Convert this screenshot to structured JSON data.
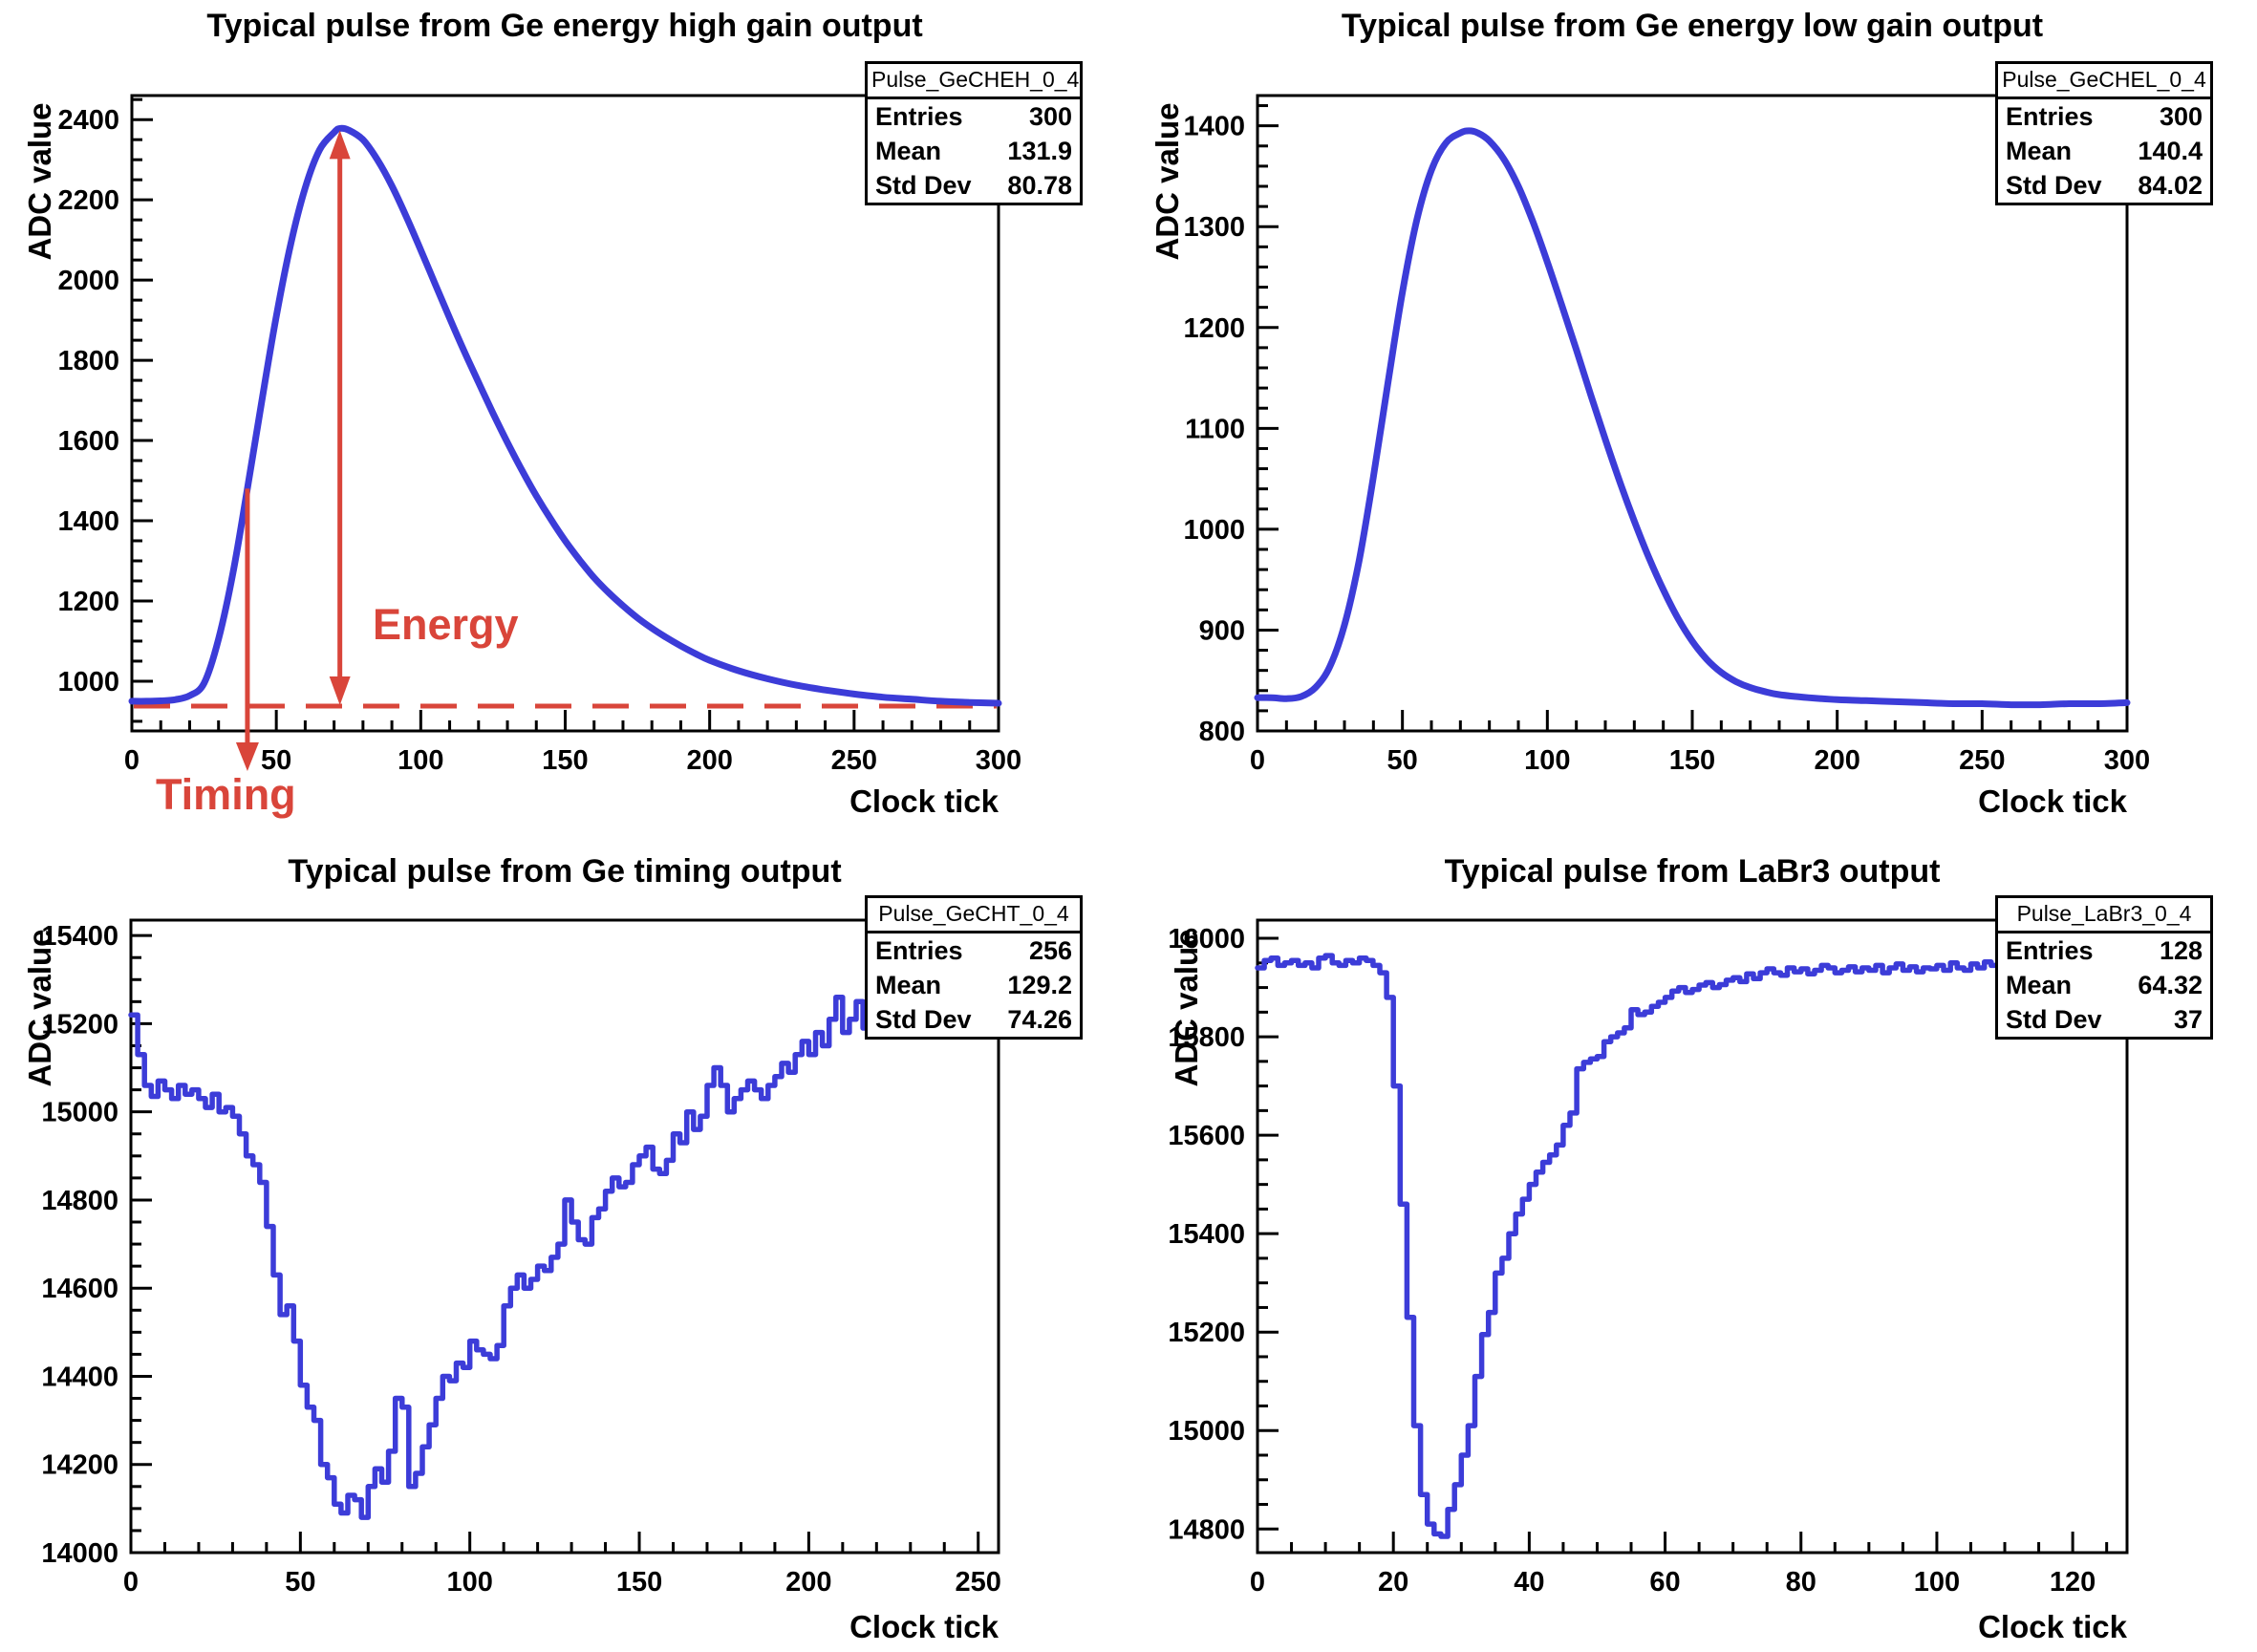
{
  "page": {
    "background": "#ffffff"
  },
  "colors": {
    "curve": "#3c3cd8",
    "annotation": "#d9453a",
    "frame": "#000000"
  },
  "chart_data": [
    {
      "id": "ge-energy-high-gain",
      "type": "line",
      "draw": "smooth",
      "title": "Typical pulse from Ge energy high gain output",
      "xlabel": "Clock tick",
      "ylabel": "ADC value",
      "stats": {
        "header": "Pulse_GeCHEH_0_4",
        "rows": [
          {
            "label": "Entries",
            "value": "300"
          },
          {
            "label": "Mean",
            "value": "131.9"
          },
          {
            "label": "Std Dev",
            "value": "80.78"
          }
        ]
      },
      "xlim": [
        0,
        300
      ],
      "ylim": [
        876,
        2460
      ],
      "xticks": {
        "major": 50,
        "minor": 10
      },
      "yticks": {
        "major": 200,
        "minor": 50
      },
      "grid": false,
      "x": [
        0,
        5,
        10,
        15,
        20,
        25,
        30,
        35,
        40,
        45,
        50,
        55,
        60,
        65,
        70,
        72,
        75,
        80,
        85,
        90,
        95,
        100,
        105,
        110,
        115,
        120,
        125,
        130,
        135,
        140,
        145,
        150,
        155,
        160,
        165,
        170,
        175,
        180,
        185,
        190,
        195,
        200,
        210,
        220,
        230,
        240,
        250,
        260,
        270,
        280,
        290,
        300
      ],
      "y": [
        950,
        950,
        951,
        954,
        964,
        995,
        1105,
        1270,
        1480,
        1700,
        1910,
        2090,
        2230,
        2325,
        2368,
        2378,
        2374,
        2350,
        2300,
        2235,
        2158,
        2075,
        1990,
        1905,
        1823,
        1745,
        1668,
        1595,
        1526,
        1462,
        1404,
        1350,
        1302,
        1258,
        1221,
        1188,
        1158,
        1132,
        1109,
        1088,
        1069,
        1052,
        1026,
        1006,
        990,
        978,
        968,
        960,
        955,
        950,
        947,
        945
      ],
      "annotations": {
        "energy_label": "Energy",
        "timing_label": "Timing",
        "baseline_value": 938,
        "energy_arrow": {
          "x": 72,
          "from_value": 938,
          "to_value": 2378
        },
        "timing_arrow": {
          "x": 40,
          "from_value": 1480
        }
      }
    },
    {
      "id": "ge-energy-low-gain",
      "type": "line",
      "draw": "smooth",
      "title": "Typical pulse from Ge energy low gain output",
      "xlabel": "Clock tick",
      "ylabel": "ADC value",
      "stats": {
        "header": "Pulse_GeCHEL_0_4",
        "rows": [
          {
            "label": "Entries",
            "value": "300"
          },
          {
            "label": "Mean",
            "value": "140.4"
          },
          {
            "label": "Std Dev",
            "value": "84.02"
          }
        ]
      },
      "xlim": [
        0,
        300
      ],
      "ylim": [
        800,
        1430
      ],
      "xticks": {
        "major": 50,
        "minor": 10
      },
      "yticks": {
        "major": 100,
        "minor": 20
      },
      "grid": false,
      "x": [
        0,
        5,
        10,
        15,
        20,
        25,
        30,
        35,
        40,
        45,
        50,
        55,
        60,
        65,
        70,
        73,
        76,
        80,
        85,
        90,
        95,
        100,
        105,
        110,
        115,
        120,
        125,
        130,
        135,
        140,
        145,
        150,
        155,
        160,
        165,
        170,
        175,
        180,
        190,
        200,
        210,
        220,
        230,
        240,
        250,
        260,
        270,
        280,
        290,
        300
      ],
      "y": [
        833,
        833,
        832,
        834,
        843,
        864,
        905,
        968,
        1052,
        1145,
        1235,
        1307,
        1356,
        1383,
        1393,
        1395,
        1393,
        1385,
        1367,
        1340,
        1305,
        1265,
        1222,
        1178,
        1133,
        1089,
        1047,
        1008,
        972,
        940,
        912,
        889,
        871,
        858,
        849,
        843,
        839,
        836,
        833,
        831,
        830,
        829,
        828,
        827,
        827,
        826,
        826,
        827,
        827,
        828
      ]
    },
    {
      "id": "ge-timing",
      "type": "line",
      "draw": "steps",
      "title": "Typical pulse from Ge timing output",
      "xlabel": "Clock tick",
      "ylabel": "ADC value",
      "stats": {
        "header": "Pulse_GeCHT_0_4",
        "rows": [
          {
            "label": "Entries",
            "value": "256"
          },
          {
            "label": "Mean",
            "value": "129.2"
          },
          {
            "label": "Std Dev",
            "value": "74.26"
          }
        ]
      },
      "xlim": [
        0,
        256
      ],
      "ylim": [
        14000,
        15435
      ],
      "xticks": {
        "major": 50,
        "minor": 10
      },
      "yticks": {
        "major": 200,
        "minor": 50
      },
      "grid": false,
      "x0": 0,
      "dx": 2,
      "y": [
        15220,
        15130,
        15060,
        15035,
        15070,
        15050,
        15030,
        15060,
        15040,
        15050,
        15030,
        15010,
        15040,
        15000,
        15010,
        14990,
        14950,
        14900,
        14880,
        14840,
        14740,
        14630,
        14540,
        14560,
        14480,
        14380,
        14330,
        14300,
        14200,
        14170,
        14110,
        14090,
        14130,
        14120,
        14080,
        14150,
        14190,
        14160,
        14230,
        14350,
        14330,
        14150,
        14180,
        14240,
        14290,
        14350,
        14400,
        14390,
        14430,
        14420,
        14480,
        14460,
        14450,
        14440,
        14470,
        14560,
        14600,
        14630,
        14600,
        14620,
        14650,
        14640,
        14670,
        14700,
        14800,
        14750,
        14710,
        14700,
        14760,
        14780,
        14820,
        14850,
        14830,
        14840,
        14880,
        14900,
        14920,
        14870,
        14860,
        14890,
        14950,
        14930,
        15000,
        14960,
        14990,
        15060,
        15100,
        15060,
        15000,
        15030,
        15050,
        15070,
        15050,
        15030,
        15060,
        15080,
        15110,
        15090,
        15130,
        15160,
        15130,
        15180,
        15150,
        15210,
        15260,
        15180,
        15210,
        15250,
        15190,
        15220,
        15190,
        15270,
        15230,
        15250,
        15260,
        15280,
        15270,
        15300,
        15290,
        15310,
        15300,
        15320,
        15340,
        15330,
        15350,
        15360,
        15340,
        15370,
        15380
      ]
    },
    {
      "id": "labr3",
      "type": "line",
      "draw": "steps",
      "title": "Typical pulse from LaBr3 output",
      "xlabel": "Clock tick",
      "ylabel": "ADC value",
      "stats": {
        "header": "Pulse_LaBr3_0_4",
        "rows": [
          {
            "label": "Entries",
            "value": "128"
          },
          {
            "label": "Mean",
            "value": "64.32"
          },
          {
            "label": "Std Dev",
            "value": "37"
          }
        ]
      },
      "xlim": [
        0,
        128
      ],
      "ylim": [
        14752,
        16037
      ],
      "xticks": {
        "major": 20,
        "minor": 5
      },
      "yticks": {
        "major": 200,
        "minor": 50
      },
      "grid": false,
      "x0": 0,
      "dx": 1,
      "y": [
        15940,
        15955,
        15960,
        15945,
        15950,
        15955,
        15945,
        15950,
        15940,
        15960,
        15965,
        15950,
        15945,
        15955,
        15950,
        15960,
        15955,
        15945,
        15930,
        15880,
        15700,
        15460,
        15230,
        15010,
        14870,
        14810,
        14790,
        14785,
        14840,
        14890,
        14950,
        15010,
        15110,
        15195,
        15240,
        15320,
        15350,
        15400,
        15440,
        15470,
        15500,
        15525,
        15545,
        15560,
        15580,
        15620,
        15645,
        15735,
        15748,
        15755,
        15760,
        15790,
        15800,
        15808,
        15818,
        15855,
        15845,
        15850,
        15862,
        15870,
        15880,
        15893,
        15900,
        15890,
        15896,
        15905,
        15910,
        15900,
        15906,
        15915,
        15920,
        15912,
        15928,
        15918,
        15930,
        15938,
        15930,
        15925,
        15940,
        15932,
        15938,
        15928,
        15935,
        15945,
        15940,
        15930,
        15935,
        15942,
        15932,
        15940,
        15935,
        15945,
        15930,
        15940,
        15948,
        15935,
        15942,
        15932,
        15940,
        15938,
        15945,
        15935,
        15950,
        15940,
        15935,
        15948,
        15940,
        15952,
        15945,
        15950,
        15955,
        15945,
        15950,
        15958,
        15948,
        15940,
        15952,
        15945,
        15955,
        15948,
        15950,
        15945,
        15955,
        15950,
        15958,
        15948,
        15952,
        15950,
        15945
      ]
    }
  ]
}
